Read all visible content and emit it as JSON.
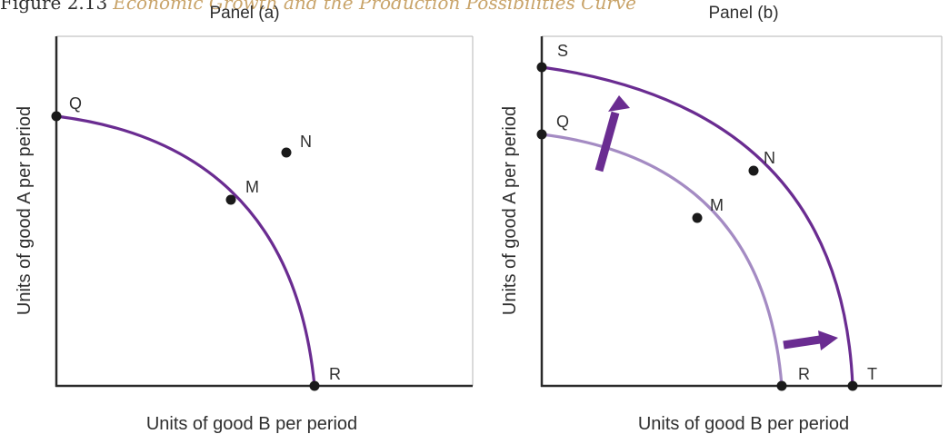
{
  "figure": {
    "number": "Figure 2.13",
    "title": "Economic Growth and the Production Possibilities Curve"
  },
  "colors": {
    "curve_dark": "#6a2c91",
    "curve_light": "#a48bc3",
    "arrow": "#6a2c91",
    "axis": "#2a2a2a",
    "point": "#1a1a1a"
  },
  "panel_a": {
    "title": "Panel (a)",
    "x_axis_label": "Units of good B per period",
    "y_axis_label": "Units of good A per period",
    "points": {
      "q": "Q",
      "m": "M",
      "n": "N",
      "r": "R"
    }
  },
  "panel_b": {
    "title": "Panel (b)",
    "x_axis_label": "Units of good B per period",
    "y_axis_label": "Units of good A per period",
    "points": {
      "s": "S",
      "q": "Q",
      "n": "N",
      "m": "M",
      "r": "R",
      "t": "T"
    }
  }
}
